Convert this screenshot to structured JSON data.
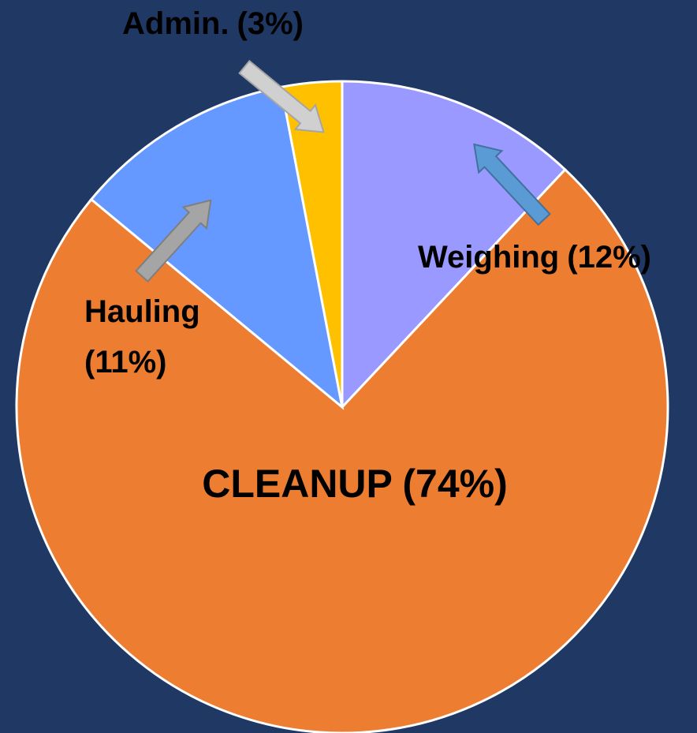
{
  "chart_data": {
    "type": "pie",
    "categories": [
      "Weighing",
      "CLEANUP",
      "Hauling",
      "Admin."
    ],
    "values": [
      12,
      74,
      11,
      3
    ],
    "value_labels": [
      "(12%)",
      "(74%)",
      "(11%)",
      "(3%)"
    ],
    "colors": [
      "#9999ff",
      "#ed7d31",
      "#6699ff",
      "#ffc000"
    ],
    "start_angle": 0,
    "direction": "clockwise"
  }
}
